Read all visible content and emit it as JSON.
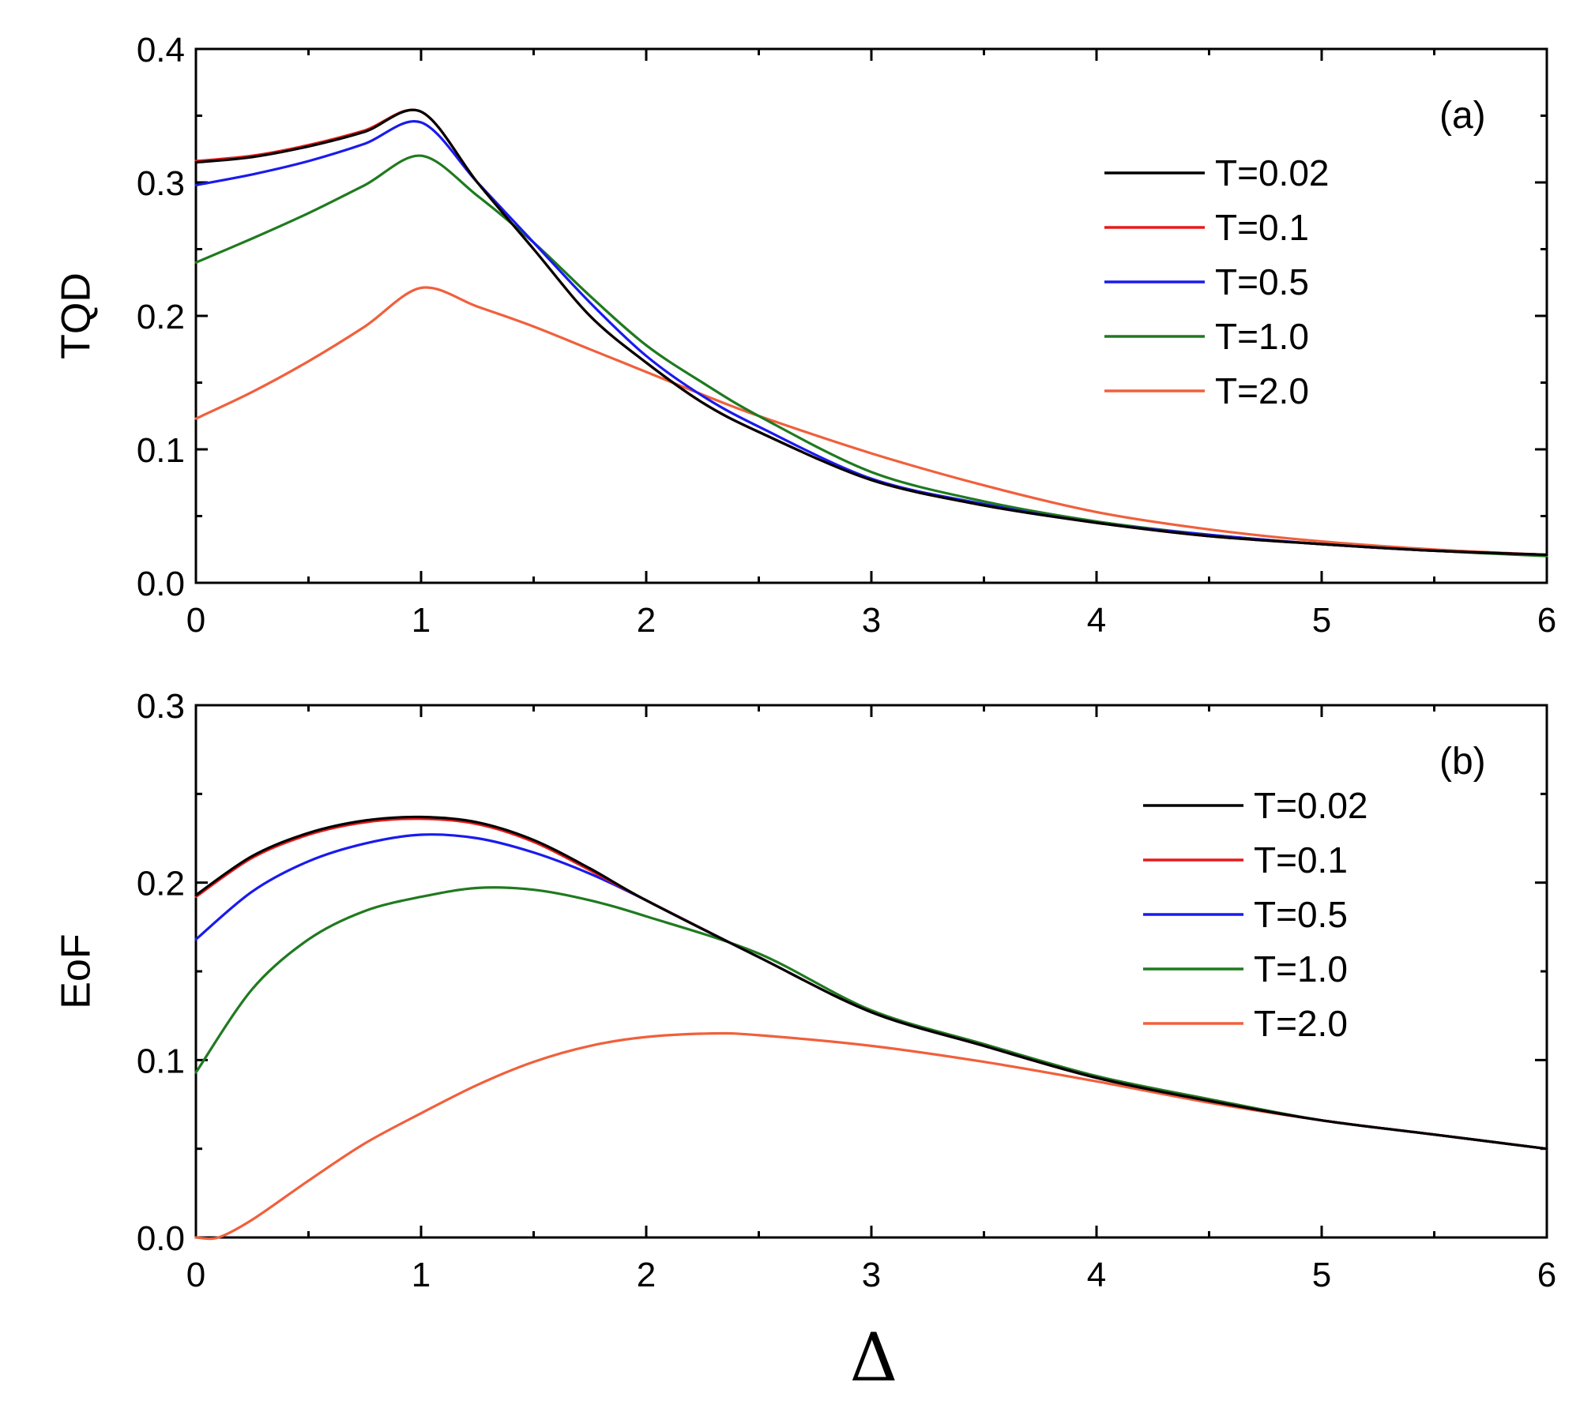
{
  "chart_data": [
    {
      "type": "line",
      "panel_label": "(a)",
      "xlabel": "",
      "ylabel": "TQD",
      "xlim": [
        0,
        6
      ],
      "ylim": [
        0,
        0.4
      ],
      "xticks": [
        "0",
        "1",
        "2",
        "3",
        "4",
        "5",
        "6"
      ],
      "yticks": [
        "0.0",
        "0.1",
        "0.2",
        "0.3",
        "0.4"
      ],
      "legend_position": "top-right",
      "series": [
        {
          "name": "T=0.02",
          "color": "#000000",
          "x": [
            0,
            0.25,
            0.5,
            0.75,
            1.0,
            1.25,
            1.5,
            1.75,
            2.0,
            2.25,
            2.5,
            3.0,
            3.5,
            4.0,
            4.5,
            5.0,
            5.5,
            6.0
          ],
          "y": [
            0.315,
            0.319,
            0.327,
            0.338,
            0.353,
            0.3,
            0.25,
            0.2,
            0.165,
            0.135,
            0.113,
            0.077,
            0.058,
            0.045,
            0.035,
            0.029,
            0.024,
            0.021
          ]
        },
        {
          "name": "T=0.1",
          "color": "#e8191a",
          "x": [
            0,
            0.25,
            0.5,
            0.75,
            1.0,
            1.25,
            1.5,
            1.75,
            2.0,
            2.25,
            2.5,
            3.0,
            3.5,
            4.0,
            4.5,
            5.0,
            5.5,
            6.0
          ],
          "y": [
            0.316,
            0.32,
            0.328,
            0.339,
            0.353,
            0.3,
            0.25,
            0.2,
            0.165,
            0.135,
            0.113,
            0.077,
            0.058,
            0.045,
            0.035,
            0.029,
            0.024,
            0.021
          ]
        },
        {
          "name": "T=0.5",
          "color": "#1a1aee",
          "x": [
            0,
            0.25,
            0.5,
            0.75,
            1.0,
            1.25,
            1.5,
            1.75,
            2.0,
            2.25,
            2.5,
            3.0,
            3.5,
            4.0,
            4.5,
            5.0,
            5.5,
            6.0
          ],
          "y": [
            0.298,
            0.306,
            0.316,
            0.329,
            0.345,
            0.3,
            0.255,
            0.21,
            0.17,
            0.14,
            0.117,
            0.078,
            0.059,
            0.045,
            0.036,
            0.029,
            0.024,
            0.021
          ]
        },
        {
          "name": "T=1.0",
          "color": "#1f7a1f",
          "x": [
            0,
            0.25,
            0.5,
            0.75,
            1.0,
            1.25,
            1.5,
            1.75,
            2.0,
            2.25,
            2.5,
            3.0,
            3.5,
            4.0,
            4.5,
            5.0,
            5.5,
            6.0
          ],
          "y": [
            0.24,
            0.258,
            0.277,
            0.298,
            0.32,
            0.29,
            0.255,
            0.215,
            0.178,
            0.15,
            0.125,
            0.083,
            0.061,
            0.046,
            0.036,
            0.029,
            0.024,
            0.02
          ]
        },
        {
          "name": "T=2.0",
          "color": "#f0603c",
          "x": [
            0,
            0.25,
            0.5,
            0.75,
            1.0,
            1.25,
            1.5,
            1.75,
            2.0,
            2.25,
            2.5,
            3.0,
            3.5,
            4.0,
            4.5,
            5.0,
            5.5,
            6.0
          ],
          "y": [
            0.123,
            0.143,
            0.166,
            0.192,
            0.221,
            0.207,
            0.192,
            0.175,
            0.158,
            0.141,
            0.125,
            0.097,
            0.073,
            0.053,
            0.04,
            0.031,
            0.025,
            0.021
          ]
        }
      ]
    },
    {
      "type": "line",
      "panel_label": "(b)",
      "xlabel": "Δ",
      "ylabel": "EoF",
      "xlim": [
        0,
        6
      ],
      "ylim": [
        0,
        0.3
      ],
      "xticks": [
        "0",
        "1",
        "2",
        "3",
        "4",
        "5",
        "6"
      ],
      "yticks": [
        "0.0",
        "0.1",
        "0.2",
        "0.3"
      ],
      "legend_position": "top-right",
      "series": [
        {
          "name": "T=0.02",
          "color": "#000000",
          "x": [
            0,
            0.25,
            0.5,
            0.75,
            1.0,
            1.25,
            1.5,
            1.75,
            2.0,
            2.5,
            3.0,
            3.5,
            4.0,
            4.5,
            5.0,
            5.5,
            6.0
          ],
          "y": [
            0.193,
            0.215,
            0.228,
            0.235,
            0.237,
            0.234,
            0.224,
            0.208,
            0.19,
            0.158,
            0.127,
            0.108,
            0.09,
            0.077,
            0.066,
            0.058,
            0.05
          ]
        },
        {
          "name": "T=0.1",
          "color": "#e8191a",
          "x": [
            0,
            0.25,
            0.5,
            0.75,
            1.0,
            1.25,
            1.5,
            1.75,
            2.0,
            2.5,
            3.0,
            3.5,
            4.0,
            4.5,
            5.0,
            5.5,
            6.0
          ],
          "y": [
            0.192,
            0.214,
            0.227,
            0.234,
            0.236,
            0.233,
            0.223,
            0.207,
            0.19,
            0.158,
            0.127,
            0.108,
            0.09,
            0.077,
            0.066,
            0.058,
            0.05
          ]
        },
        {
          "name": "T=0.5",
          "color": "#1a1aee",
          "x": [
            0,
            0.25,
            0.5,
            0.75,
            1.0,
            1.25,
            1.5,
            1.75,
            2.0,
            2.5,
            3.0,
            3.5,
            4.0,
            4.5,
            5.0,
            5.5,
            6.0
          ],
          "y": [
            0.168,
            0.195,
            0.212,
            0.222,
            0.227,
            0.225,
            0.217,
            0.205,
            0.19,
            0.158,
            0.127,
            0.108,
            0.09,
            0.077,
            0.066,
            0.058,
            0.05
          ]
        },
        {
          "name": "T=1.0",
          "color": "#1f7a1f",
          "x": [
            0,
            0.25,
            0.5,
            0.75,
            1.0,
            1.25,
            1.5,
            1.75,
            2.0,
            2.5,
            3.0,
            3.5,
            4.0,
            4.5,
            5.0,
            5.5,
            6.0
          ],
          "y": [
            0.093,
            0.14,
            0.168,
            0.184,
            0.192,
            0.197,
            0.196,
            0.19,
            0.181,
            0.16,
            0.128,
            0.109,
            0.091,
            0.078,
            0.066,
            0.058,
            0.05
          ]
        },
        {
          "name": "T=2.0",
          "color": "#f0603c",
          "x": [
            0,
            0.1,
            0.25,
            0.5,
            0.75,
            1.0,
            1.25,
            1.5,
            1.75,
            2.0,
            2.3,
            2.5,
            3.0,
            3.5,
            4.0,
            4.5,
            5.0,
            5.5,
            6.0
          ],
          "y": [
            0.0,
            0.0,
            0.01,
            0.032,
            0.053,
            0.07,
            0.086,
            0.099,
            0.108,
            0.113,
            0.115,
            0.114,
            0.108,
            0.099,
            0.088,
            0.076,
            0.066,
            0.058,
            0.05
          ]
        }
      ]
    }
  ]
}
